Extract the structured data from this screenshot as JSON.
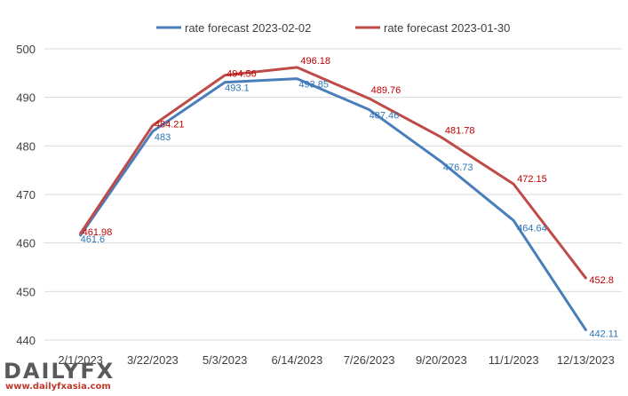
{
  "chart_data": {
    "type": "line",
    "title": "",
    "xlabel": "",
    "ylabel": "",
    "categories": [
      "2/1/2023",
      "3/22/2023",
      "5/3/2023",
      "6/14/2023",
      "7/26/2023",
      "9/20/2023",
      "11/1/2023",
      "12/13/2023"
    ],
    "ylim": [
      440,
      500
    ],
    "yticks": [
      "440",
      "450",
      "460",
      "470",
      "480",
      "490",
      "500"
    ],
    "grid": "horizontal",
    "legend_position": "top",
    "series": [
      {
        "name": "rate forecast 2023-02-02",
        "color": "#4a7ebb",
        "label_color": "#2e75b6",
        "values": [
          461.6,
          483,
          493.1,
          493.85,
          487.46,
          476.73,
          464.64,
          442.11
        ],
        "labels": [
          "461.6",
          "483",
          "493.1",
          "493.85",
          "487.46",
          "476.73",
          "464.64",
          "442.11"
        ]
      },
      {
        "name": "rate forecast 2023-01-30",
        "color": "#be4b48",
        "label_color": "#c00000",
        "values": [
          461.98,
          484.21,
          494.56,
          496.18,
          489.76,
          481.78,
          472.15,
          452.8
        ],
        "labels": [
          "461.98",
          "484.21",
          "494.56",
          "496.18",
          "489.76",
          "481.78",
          "472.15",
          "452.8"
        ]
      }
    ]
  },
  "branding": {
    "logo_text": "DAILYFX",
    "url": "www.dailyfxasia.com"
  }
}
